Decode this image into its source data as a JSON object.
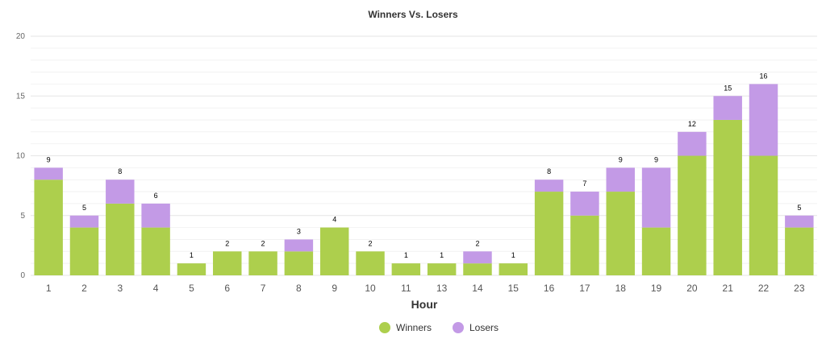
{
  "chart_data": {
    "type": "bar",
    "stacked": true,
    "title": "Winners Vs. Losers",
    "xlabel": "Hour",
    "ylabel": "",
    "ylim": [
      0,
      20
    ],
    "yticks": [
      0,
      5,
      10,
      15,
      20
    ],
    "grid": true,
    "legend_position": "bottom",
    "categories": [
      "1",
      "2",
      "3",
      "4",
      "5",
      "6",
      "7",
      "8",
      "9",
      "10",
      "11",
      "13",
      "14",
      "15",
      "16",
      "17",
      "18",
      "19",
      "20",
      "21",
      "22",
      "23"
    ],
    "series": [
      {
        "name": "Winners",
        "color": "#adcf4d",
        "values": [
          8,
          4,
          6,
          4,
          1,
          2,
          2,
          2,
          4,
          2,
          1,
          1,
          1,
          1,
          7,
          5,
          7,
          4,
          10,
          13,
          10,
          4
        ]
      },
      {
        "name": "Losers",
        "color": "#c39ae6",
        "values": [
          1,
          1,
          2,
          2,
          0,
          0,
          0,
          1,
          0,
          0,
          0,
          0,
          1,
          0,
          1,
          2,
          2,
          5,
          2,
          2,
          6,
          1
        ]
      }
    ],
    "totals": [
      9,
      5,
      8,
      6,
      1,
      2,
      2,
      3,
      4,
      2,
      1,
      1,
      2,
      1,
      8,
      7,
      9,
      9,
      12,
      15,
      16,
      5
    ]
  }
}
